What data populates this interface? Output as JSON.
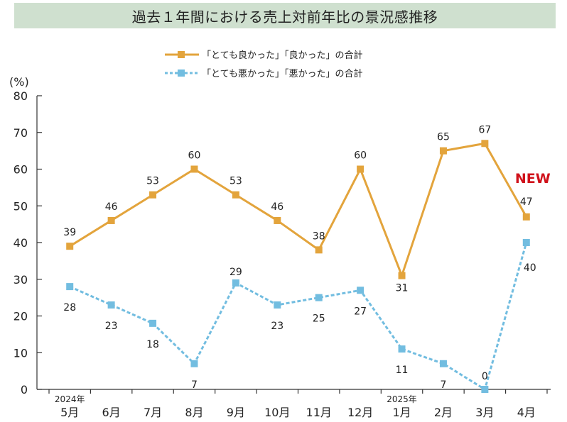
{
  "title": "過去１年間における売上対前年比の景況感推移",
  "new_badge": "NEW",
  "colors": {
    "good": "#e3a43c",
    "bad": "#72bde0",
    "title_bg": "#cfe0cf",
    "new": "#d0121b"
  },
  "chart_data": {
    "type": "line",
    "title": "過去１年間における売上対前年比の景況感推移",
    "ylabel": "(%)",
    "ylim": [
      0,
      80
    ],
    "yticks": [
      0,
      10,
      20,
      30,
      40,
      50,
      60,
      70,
      80
    ],
    "grid": false,
    "legend_position": "top-center",
    "categories": [
      "5月",
      "6月",
      "7月",
      "8月",
      "9月",
      "10月",
      "11月",
      "12月",
      "1月",
      "2月",
      "3月",
      "4月"
    ],
    "year_labels": [
      {
        "index": 0,
        "label": "2024年"
      },
      {
        "index": 8,
        "label": "2025年"
      }
    ],
    "series": [
      {
        "name": "「とても良かった」「良かった」の合計",
        "values": [
          39,
          46,
          53,
          60,
          53,
          46,
          38,
          60,
          31,
          65,
          67,
          47
        ]
      },
      {
        "name": "「とても悪かった」「悪かった」の合計",
        "values": [
          28,
          23,
          18,
          7,
          29,
          23,
          25,
          27,
          11,
          7,
          0,
          40
        ]
      }
    ]
  }
}
